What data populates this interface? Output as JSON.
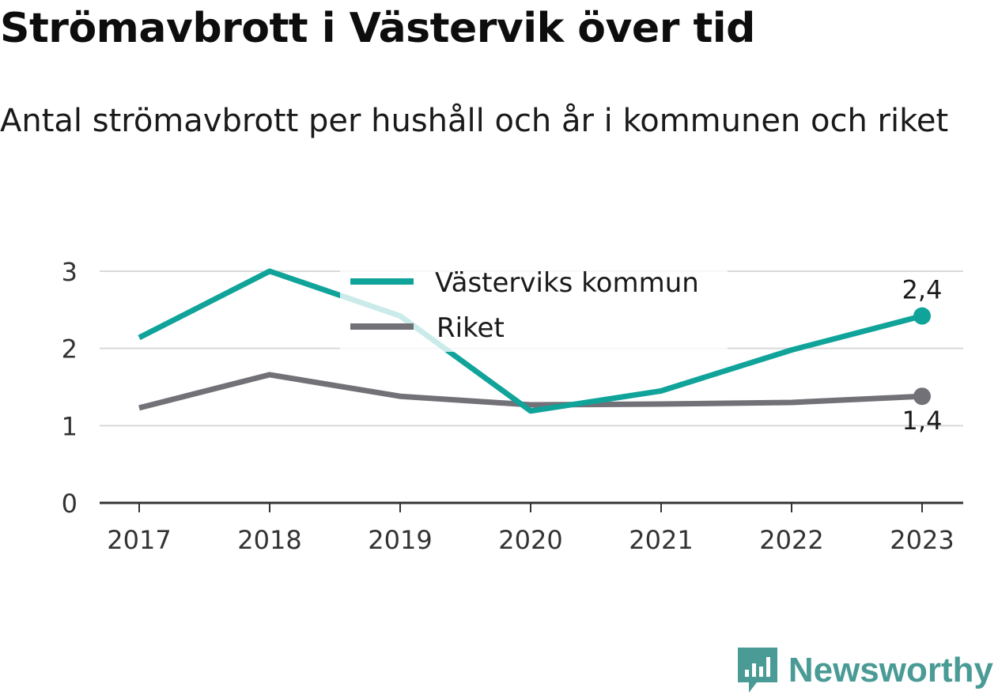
{
  "brand": {
    "name": "Newsworthy",
    "icon": "bar-chart-badge-icon",
    "color": "#4a9a95"
  },
  "chart_data": {
    "type": "line",
    "title": "Strömavbrott i Västervik över tid",
    "subtitle": "Antal strömavbrott per hushåll och år i kommunen och riket",
    "xlabel": "",
    "ylabel": "",
    "x": [
      "2017",
      "2018",
      "2019",
      "2020",
      "2021",
      "2022",
      "2023"
    ],
    "ylim": [
      0,
      3
    ],
    "yticks": [
      0,
      1,
      2,
      3
    ],
    "grid": true,
    "legend_position": "top-center",
    "series": [
      {
        "name": "Västerviks kommun",
        "color": "#0fa39a",
        "values": [
          2.14,
          3.0,
          2.42,
          1.19,
          1.45,
          1.98,
          2.42
        ],
        "end_label": "2,4"
      },
      {
        "name": "Riket",
        "color": "#727178",
        "values": [
          1.23,
          1.66,
          1.38,
          1.27,
          1.28,
          1.3,
          1.38
        ],
        "end_label": "1,4"
      }
    ]
  }
}
